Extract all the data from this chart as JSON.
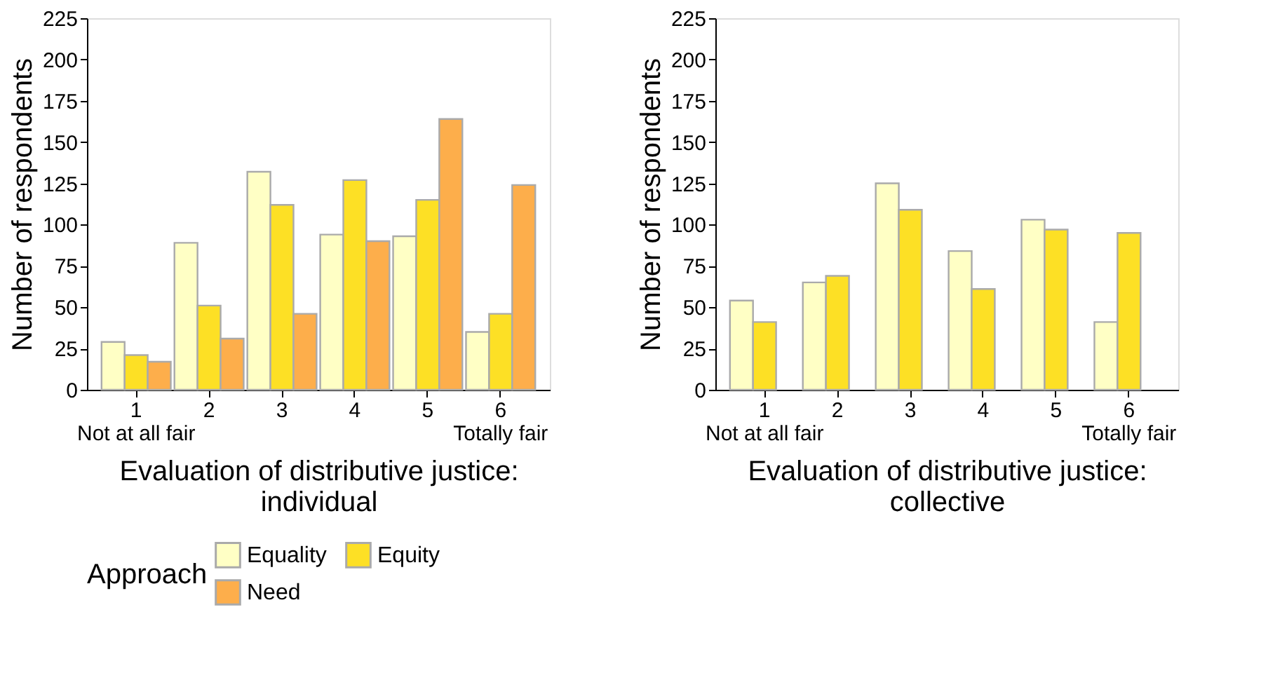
{
  "chart_data": [
    {
      "type": "bar",
      "categories": [
        "1",
        "2",
        "3",
        "4",
        "5",
        "6"
      ],
      "xlabel": "Evaluation of distributive justice:\nindividual",
      "ylabel": "Number of respondents",
      "legend_title": "Approach",
      "legend": "bottom",
      "ylim": [
        0,
        225
      ],
      "yticks": [
        0,
        25,
        50,
        75,
        100,
        125,
        150,
        175,
        200,
        225
      ],
      "annotations": [
        "Not at all fair",
        "Totally fair"
      ],
      "series": [
        {
          "name": "Equality",
          "color": "#ffffc5",
          "values": [
            29,
            89,
            132,
            94,
            93,
            35
          ]
        },
        {
          "name": "Equity",
          "color": "#fde025",
          "values": [
            21,
            51,
            112,
            127,
            115,
            46
          ]
        },
        {
          "name": "Need",
          "color": "#fdae4b",
          "values": [
            17,
            31,
            46,
            90,
            164,
            124
          ]
        }
      ]
    },
    {
      "type": "bar",
      "categories": [
        "1",
        "2",
        "3",
        "4",
        "5",
        "6"
      ],
      "xlabel": "Evaluation of distributive justice:\ncollective",
      "ylabel": "Number of respondents",
      "ylim": [
        0,
        225
      ],
      "yticks": [
        0,
        25,
        50,
        75,
        100,
        125,
        150,
        175,
        200,
        225
      ],
      "annotations": [
        "Not at all fair",
        "Totally fair"
      ],
      "series": [
        {
          "name": "Equality",
          "color": "#ffffc5",
          "values": [
            54,
            65,
            125,
            84,
            103,
            41
          ]
        },
        {
          "name": "Equity",
          "color": "#fde025",
          "values": [
            41,
            69,
            109,
            61,
            97,
            95
          ]
        }
      ]
    }
  ]
}
